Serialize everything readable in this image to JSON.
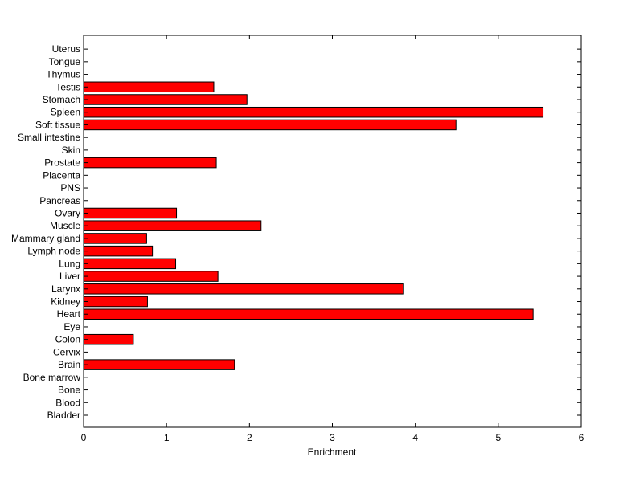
{
  "chart_data": {
    "type": "bar",
    "orientation": "horizontal",
    "title": "",
    "xlabel": "Enrichment",
    "ylabel": "",
    "xlim": [
      0,
      6
    ],
    "xticks": [
      0,
      1,
      2,
      3,
      4,
      5,
      6
    ],
    "grid": false,
    "bar_color": "#ff0000",
    "bar_edge_color": "#000000",
    "categories": [
      "Bladder",
      "Blood",
      "Bone",
      "Bone marrow",
      "Brain",
      "Cervix",
      "Colon",
      "Eye",
      "Heart",
      "Kidney",
      "Larynx",
      "Liver",
      "Lung",
      "Lymph node",
      "Mammary gland",
      "Muscle",
      "Ovary",
      "Pancreas",
      "PNS",
      "Placenta",
      "Prostate",
      "Skin",
      "Small intestine",
      "Soft tissue",
      "Spleen",
      "Stomach",
      "Testis",
      "Thymus",
      "Tongue",
      "Uterus"
    ],
    "values": [
      0,
      0,
      0,
      0,
      1.82,
      0,
      0.6,
      0,
      5.42,
      0.77,
      3.86,
      1.62,
      1.11,
      0.83,
      0.76,
      2.14,
      1.12,
      0,
      0,
      0,
      1.6,
      0,
      0,
      4.49,
      5.54,
      1.97,
      1.57,
      0,
      0,
      0
    ]
  }
}
